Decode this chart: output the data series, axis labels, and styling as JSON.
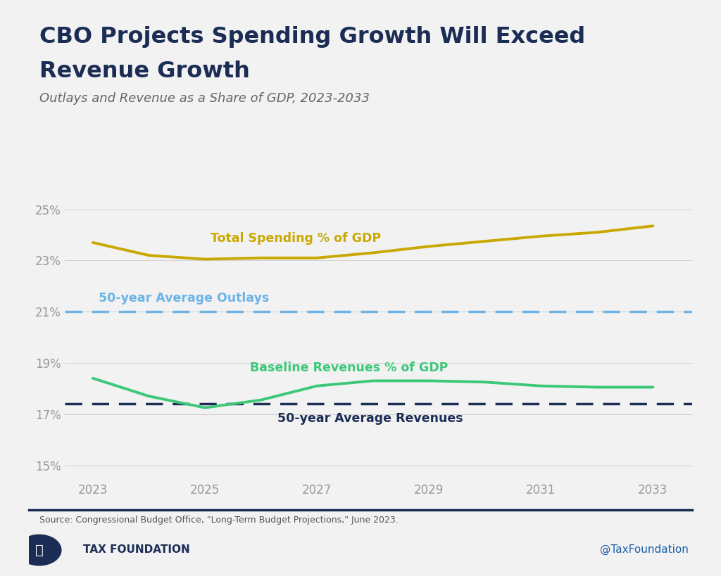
{
  "title_line1": "CBO Projects Spending Growth Will Exceed",
  "title_line2": "Revenue Growth",
  "subtitle": "Outlays and Revenue as a Share of GDP, 2023-2033",
  "source_text": "Source: Congressional Budget Office, \"Long-Term Budget Projections,\" June 2023.",
  "twitter_handle": "@TaxFoundation",
  "background_color": "#f2f2f2",
  "plot_bg_color": "#f2f2f2",
  "years": [
    2023,
    2024,
    2025,
    2026,
    2027,
    2028,
    2029,
    2030,
    2031,
    2032,
    2033
  ],
  "total_spending": [
    23.7,
    23.2,
    23.05,
    23.1,
    23.1,
    23.3,
    23.55,
    23.75,
    23.95,
    24.1,
    24.35
  ],
  "spending_color": "#C9A800",
  "spending_label": "Total Spending % of GDP",
  "avg_outlays": 21.0,
  "avg_outlays_color": "#6CB4E8",
  "avg_outlays_label": "50-year Average Outlays",
  "baseline_revenues": [
    18.4,
    17.7,
    17.25,
    17.55,
    18.1,
    18.3,
    18.3,
    18.25,
    18.1,
    18.05,
    18.05
  ],
  "revenues_color": "#3CC878",
  "revenues_label": "Baseline Revenues % of GDP",
  "avg_revenues": 17.4,
  "avg_revenues_color": "#1B2D55",
  "avg_revenues_label": "50-year Average Revenues",
  "ylim": [
    14.5,
    26.2
  ],
  "yticks": [
    15,
    17,
    19,
    21,
    23,
    25
  ],
  "xlim": [
    2022.5,
    2033.7
  ],
  "xticks": [
    2023,
    2025,
    2027,
    2029,
    2031,
    2033
  ],
  "title_color": "#1B2D55",
  "subtitle_color": "#666666",
  "axis_label_color": "#999999",
  "gridline_color": "#d0d0d0",
  "divider_color": "#1B2D55"
}
